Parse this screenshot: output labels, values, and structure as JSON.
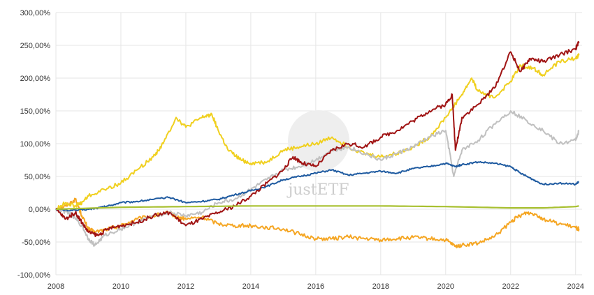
{
  "chart_data": {
    "type": "line",
    "title": "",
    "xlabel": "",
    "ylabel": "",
    "xlim": [
      2008.0,
      2024.2
    ],
    "ylim": [
      -100,
      300
    ],
    "y_ticks": [
      "300,00%",
      "250,00%",
      "200,00%",
      "150,00%",
      "100,00%",
      "50,00%",
      "0,00%",
      "-50,00%",
      "-100,00%"
    ],
    "x_ticks": [
      "2008",
      "2010",
      "2012",
      "2014",
      "2016",
      "2018",
      "2020",
      "2022",
      "2024"
    ],
    "grid": true,
    "legend": "none",
    "watermark": "justETF",
    "series": [
      {
        "color": "#f5a623",
        "x": [
          2008.0,
          2008.3,
          2008.6,
          2008.8,
          2009.0,
          2009.2,
          2009.6,
          2010.0,
          2010.5,
          2011.0,
          2011.5,
          2011.7,
          2012.0,
          2012.5,
          2013.0,
          2013.5,
          2014.0,
          2014.5,
          2015.0,
          2015.5,
          2016.0,
          2016.5,
          2017.0,
          2017.5,
          2018.0,
          2018.5,
          2019.0,
          2019.5,
          2020.0,
          2020.3,
          2020.5,
          2021.0,
          2021.5,
          2022.0,
          2022.2,
          2022.5,
          2022.8,
          2023.0,
          2023.5,
          2024.0,
          2024.1
        ],
        "y": [
          0,
          5,
          15,
          -10,
          -30,
          -35,
          -30,
          -25,
          -15,
          -10,
          -5,
          -12,
          -15,
          -12,
          -22,
          -25,
          -25,
          -28,
          -30,
          -38,
          -45,
          -45,
          -42,
          -45,
          -47,
          -45,
          -43,
          -45,
          -47,
          -57,
          -55,
          -52,
          -42,
          -20,
          -12,
          -5,
          -8,
          -15,
          -22,
          -28,
          -30
        ]
      },
      {
        "color": "#f0d020",
        "x": [
          2008.0,
          2008.3,
          2008.6,
          2008.8,
          2009.0,
          2009.5,
          2010.0,
          2010.5,
          2011.0,
          2011.3,
          2011.7,
          2012.0,
          2012.5,
          2012.8,
          2013.0,
          2013.3,
          2013.7,
          2014.0,
          2014.5,
          2015.0,
          2015.5,
          2016.0,
          2016.5,
          2017.0,
          2017.5,
          2018.0,
          2018.5,
          2019.0,
          2019.5,
          2020.0,
          2020.5,
          2020.8,
          2021.0,
          2021.5,
          2022.0,
          2022.3,
          2022.7,
          2023.0,
          2023.5,
          2024.0,
          2024.1
        ],
        "y": [
          0,
          10,
          5,
          10,
          20,
          30,
          40,
          60,
          80,
          100,
          140,
          125,
          140,
          145,
          120,
          90,
          75,
          70,
          72,
          90,
          95,
          100,
          110,
          95,
          85,
          80,
          85,
          95,
          110,
          140,
          175,
          200,
          180,
          170,
          195,
          220,
          215,
          205,
          225,
          230,
          235
        ]
      },
      {
        "color": "#c0c0c0",
        "x": [
          2008.0,
          2008.4,
          2008.8,
          2009.0,
          2009.2,
          2009.5,
          2010.0,
          2010.5,
          2011.0,
          2011.5,
          2012.0,
          2012.5,
          2013.0,
          2013.5,
          2014.0,
          2014.5,
          2015.0,
          2015.5,
          2016.0,
          2016.5,
          2017.0,
          2017.5,
          2018.0,
          2018.5,
          2019.0,
          2019.5,
          2020.0,
          2020.25,
          2020.5,
          2021.0,
          2021.5,
          2022.0,
          2022.5,
          2023.0,
          2023.5,
          2024.0,
          2024.1
        ],
        "y": [
          0,
          -5,
          -25,
          -45,
          -55,
          -40,
          -30,
          -20,
          -10,
          -5,
          -10,
          -5,
          10,
          15,
          30,
          45,
          60,
          65,
          75,
          90,
          95,
          85,
          75,
          85,
          95,
          110,
          120,
          50,
          90,
          105,
          130,
          150,
          135,
          120,
          100,
          105,
          120
        ]
      },
      {
        "color": "#1e5aa0",
        "x": [
          2008.0,
          2008.5,
          2009.0,
          2009.3,
          2009.6,
          2010.0,
          2010.5,
          2011.0,
          2011.5,
          2012.0,
          2012.5,
          2013.0,
          2013.5,
          2014.0,
          2014.5,
          2015.0,
          2015.5,
          2016.0,
          2016.5,
          2017.0,
          2017.5,
          2018.0,
          2018.5,
          2019.0,
          2019.5,
          2020.0,
          2020.3,
          2020.5,
          2021.0,
          2021.5,
          2022.0,
          2022.3,
          2022.7,
          2023.0,
          2023.5,
          2024.0,
          2024.1
        ],
        "y": [
          0,
          -2,
          0,
          2,
          5,
          10,
          12,
          15,
          18,
          10,
          12,
          15,
          22,
          28,
          35,
          45,
          50,
          55,
          60,
          52,
          55,
          58,
          55,
          62,
          65,
          70,
          65,
          68,
          72,
          70,
          65,
          55,
          45,
          38,
          40,
          38,
          42
        ]
      },
      {
        "color": "#a01414",
        "x": [
          2008.0,
          2008.3,
          2008.6,
          2008.8,
          2009.0,
          2009.3,
          2009.6,
          2010.0,
          2010.5,
          2011.0,
          2011.5,
          2012.0,
          2012.5,
          2013.0,
          2013.5,
          2014.0,
          2014.5,
          2015.0,
          2015.3,
          2015.6,
          2016.0,
          2016.5,
          2017.0,
          2017.5,
          2018.0,
          2018.5,
          2019.0,
          2019.5,
          2020.0,
          2020.2,
          2020.3,
          2020.5,
          2021.0,
          2021.5,
          2022.0,
          2022.3,
          2022.6,
          2023.0,
          2023.5,
          2024.0,
          2024.1
        ],
        "y": [
          0,
          -15,
          -5,
          -20,
          -35,
          -40,
          -30,
          -25,
          -20,
          -10,
          -5,
          -25,
          -15,
          -5,
          5,
          20,
          40,
          60,
          80,
          70,
          65,
          90,
          100,
          95,
          110,
          120,
          135,
          150,
          160,
          175,
          90,
          140,
          160,
          185,
          240,
          210,
          230,
          225,
          235,
          245,
          255
        ]
      },
      {
        "color": "#a8c030",
        "x": [
          2008.0,
          2010.0,
          2012.0,
          2014.0,
          2016.0,
          2018.0,
          2020.0,
          2022.0,
          2023.0,
          2024.0,
          2024.1
        ],
        "y": [
          0,
          3,
          4,
          5,
          5,
          5,
          4,
          2,
          2,
          4,
          5
        ]
      }
    ]
  }
}
